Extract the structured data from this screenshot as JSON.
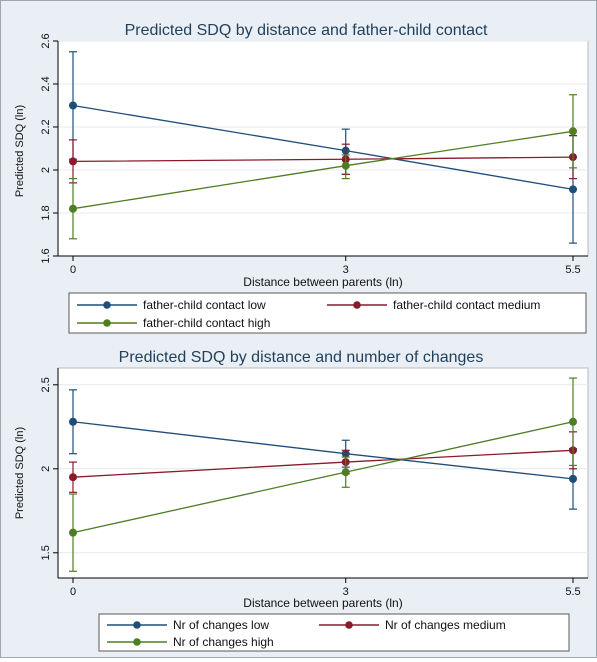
{
  "chart_data": [
    {
      "type": "line",
      "title": "Predicted SDQ by distance and father-child contact",
      "xlabel": "Distance between parents (ln)",
      "ylabel": "Predicted SDQ (ln)",
      "x": [
        0,
        3,
        5.5
      ],
      "xticks": [
        "0",
        "3",
        "5.5"
      ],
      "xlim": [
        0,
        5.5
      ],
      "yticks": [
        "1.6",
        "1.8",
        "2",
        "2.2",
        "2.4",
        "2.6"
      ],
      "ylim": [
        1.6,
        2.6
      ],
      "grid": true,
      "legend_position": "bottom",
      "series": [
        {
          "name": "father-child contact low",
          "color": "#1f4e79",
          "values": [
            2.3,
            2.09,
            1.91
          ],
          "ci_low": [
            2.05,
            1.98,
            1.66
          ],
          "ci_high": [
            2.55,
            2.19,
            2.16
          ]
        },
        {
          "name": "father-child contact medium",
          "color": "#8b1a2b",
          "values": [
            2.04,
            2.05,
            2.06
          ],
          "ci_low": [
            1.94,
            1.98,
            1.96
          ],
          "ci_high": [
            2.14,
            2.12,
            2.16
          ]
        },
        {
          "name": "father-child contact high",
          "color": "#4e7d22",
          "values": [
            1.82,
            2.02,
            2.18
          ],
          "ci_low": [
            1.68,
            1.96,
            2.01
          ],
          "ci_high": [
            1.96,
            2.07,
            2.35
          ]
        }
      ]
    },
    {
      "type": "line",
      "title": "Predicted SDQ by distance and number of changes",
      "xlabel": "Distance between parents (ln)",
      "ylabel": "Predicted SDQ (ln)",
      "x": [
        0,
        3,
        5.5
      ],
      "xticks": [
        "0",
        "3",
        "5.5"
      ],
      "xlim": [
        0,
        5.5
      ],
      "yticks": [
        "1.5",
        "2",
        "2.5"
      ],
      "ylim": [
        1.35,
        2.6
      ],
      "grid": true,
      "legend_position": "bottom",
      "series": [
        {
          "name": "Nr of changes low",
          "color": "#1f4e79",
          "values": [
            2.28,
            2.09,
            1.94
          ],
          "ci_low": [
            2.09,
            2.01,
            1.76
          ],
          "ci_high": [
            2.47,
            2.17,
            2.12
          ]
        },
        {
          "name": "Nr of changes medium",
          "color": "#8b1a2b",
          "values": [
            1.95,
            2.04,
            2.11
          ],
          "ci_low": [
            1.86,
            1.97,
            2.0
          ],
          "ci_high": [
            2.04,
            2.11,
            2.22
          ]
        },
        {
          "name": "Nr of changes high",
          "color": "#4e7d22",
          "values": [
            1.62,
            1.98,
            2.28
          ],
          "ci_low": [
            1.39,
            1.89,
            2.02
          ],
          "ci_high": [
            1.85,
            2.07,
            2.54
          ]
        }
      ]
    }
  ]
}
